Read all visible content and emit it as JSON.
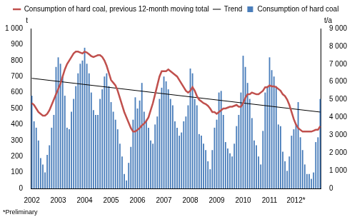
{
  "chart_data": {
    "type": "bar",
    "categories": [
      "2002",
      null,
      null,
      null,
      null,
      null,
      null,
      null,
      null,
      null,
      null,
      null,
      "2003",
      null,
      null,
      null,
      null,
      null,
      null,
      null,
      null,
      null,
      null,
      null,
      "2004",
      null,
      null,
      null,
      null,
      null,
      null,
      null,
      null,
      null,
      null,
      null,
      "2005",
      null,
      null,
      null,
      null,
      null,
      null,
      null,
      null,
      null,
      null,
      null,
      "2006",
      null,
      null,
      null,
      null,
      null,
      null,
      null,
      null,
      null,
      null,
      null,
      "2007",
      null,
      null,
      null,
      null,
      null,
      null,
      null,
      null,
      null,
      null,
      null,
      "2008",
      null,
      null,
      null,
      null,
      null,
      null,
      null,
      null,
      null,
      null,
      null,
      "2009",
      null,
      null,
      null,
      null,
      null,
      null,
      null,
      null,
      null,
      null,
      null,
      "2010",
      null,
      null,
      null,
      null,
      null,
      null,
      null,
      null,
      null,
      null,
      null,
      "2011",
      null,
      null,
      null,
      null,
      null,
      null,
      null,
      null,
      null,
      null,
      null,
      "2012*",
      null,
      null,
      null,
      null,
      null,
      null,
      null,
      null,
      null,
      null,
      null
    ],
    "series": [
      {
        "name": "Consumption of hard coal",
        "type": "bar",
        "color": "#4a7ebb",
        "values": [
          580,
          420,
          380,
          300,
          190,
          150,
          100,
          210,
          270,
          380,
          460,
          760,
          820,
          780,
          700,
          580,
          380,
          370,
          480,
          560,
          640,
          720,
          780,
          800,
          880,
          780,
          720,
          600,
          490,
          460,
          460,
          560,
          620,
          700,
          720,
          640,
          540,
          480,
          430,
          370,
          280,
          200,
          90,
          50,
          160,
          260,
          430,
          570,
          500,
          550,
          660,
          480,
          430,
          380,
          300,
          280,
          400,
          450,
          560,
          630,
          700,
          670,
          620,
          560,
          520,
          420,
          380,
          330,
          350,
          420,
          450,
          520,
          750,
          720,
          560,
          520,
          340,
          330,
          280,
          240,
          170,
          120,
          240,
          380,
          430,
          600,
          610,
          460,
          290,
          250,
          220,
          200,
          280,
          390,
          460,
          600,
          830,
          760,
          660,
          560,
          440,
          300,
          270,
          200,
          150,
          360,
          600,
          640,
          820,
          740,
          700,
          640,
          400,
          390,
          230,
          170,
          110,
          200,
          330,
          370,
          400,
          540,
          320,
          240,
          150,
          90,
          90,
          60,
          100,
          290,
          320,
          560
        ]
      },
      {
        "name": "Consumption of hard coal, previous 12-month moving total",
        "type": "line",
        "color": "#c0504d",
        "axis": "y2",
        "values": [
          4800,
          4700,
          4500,
          4300,
          4200,
          4100,
          4100,
          4200,
          4400,
          4700,
          5000,
          5300,
          5600,
          5900,
          6300,
          6700,
          7000,
          7200,
          7400,
          7600,
          7700,
          7700,
          7650,
          7600,
          7700,
          7650,
          7550,
          7450,
          7400,
          7450,
          7500,
          7500,
          7400,
          7200,
          6900,
          6500,
          6100,
          5950,
          5800,
          5500,
          5100,
          4700,
          4300,
          4000,
          3700,
          3400,
          3200,
          3200,
          3300,
          3400,
          3550,
          3650,
          3800,
          4000,
          4400,
          4800,
          5300,
          5800,
          6300,
          6600,
          6600,
          6600,
          6700,
          6600,
          6500,
          6400,
          6300,
          6100,
          5900,
          5700,
          5500,
          5400,
          5500,
          5700,
          5500,
          5200,
          5000,
          4900,
          4800,
          4750,
          4650,
          4500,
          4300,
          4300,
          4200,
          4300,
          4400,
          4500,
          4500,
          4550,
          4600,
          4600,
          4650,
          4700,
          4600,
          4600,
          4800,
          5100,
          5300,
          5300,
          5400,
          5350,
          5300,
          5300,
          5400,
          5500,
          5700,
          5700,
          5800,
          5750,
          5750,
          5700,
          5600,
          5500,
          5300,
          5200,
          5000,
          4700,
          4300,
          3900,
          3600,
          3400,
          3300,
          3200,
          3200,
          3200,
          3200,
          3200,
          3250,
          3300,
          3300,
          3500
        ]
      },
      {
        "name": "Trend",
        "type": "line",
        "color": "#000000",
        "axis": "y2",
        "values": [
          6200,
          null,
          null,
          null,
          null,
          null,
          null,
          null,
          null,
          null,
          null,
          null,
          null,
          null,
          null,
          null,
          null,
          null,
          null,
          null,
          null,
          null,
          null,
          null,
          null,
          null,
          null,
          null,
          null,
          null,
          null,
          null,
          null,
          null,
          null,
          null,
          null,
          null,
          null,
          null,
          null,
          null,
          null,
          null,
          null,
          null,
          null,
          null,
          null,
          null,
          null,
          null,
          null,
          null,
          null,
          null,
          null,
          null,
          null,
          null,
          null,
          null,
          null,
          null,
          null,
          null,
          null,
          null,
          null,
          null,
          null,
          null,
          null,
          null,
          null,
          null,
          null,
          null,
          null,
          null,
          null,
          null,
          null,
          null,
          null,
          null,
          null,
          null,
          null,
          null,
          null,
          null,
          null,
          null,
          null,
          null,
          null,
          null,
          null,
          null,
          null,
          null,
          null,
          null,
          null,
          null,
          null,
          null,
          null,
          null,
          null,
          null,
          null,
          null,
          null,
          null,
          null,
          null,
          null,
          null,
          null,
          null,
          null,
          null,
          null,
          null,
          null,
          null,
          null,
          null,
          null,
          4300
        ]
      }
    ],
    "ylabel": "t",
    "y2label": "t/a",
    "ylim": [
      0,
      1000
    ],
    "yticks": [
      0,
      100,
      200,
      300,
      400,
      500,
      600,
      700,
      800,
      900,
      {
        "value": 1000,
        "label": "1 000"
      }
    ],
    "y2lim": [
      0,
      9000
    ],
    "y2ticks": [
      0,
      {
        "value": 1000,
        "label": "1 000"
      },
      {
        "value": 2000,
        "label": "2 000"
      },
      {
        "value": 3000,
        "label": "3 000"
      },
      {
        "value": 4000,
        "label": "4 000"
      },
      {
        "value": 5000,
        "label": "5 000"
      },
      {
        "value": 6000,
        "label": "6 000"
      },
      {
        "value": 7000,
        "label": "7 000"
      },
      {
        "value": 8000,
        "label": "8 000"
      },
      {
        "value": 9000,
        "label": "9 000"
      }
    ],
    "grid": false,
    "legend": "top",
    "annotations": [
      "*Preliminary"
    ]
  }
}
